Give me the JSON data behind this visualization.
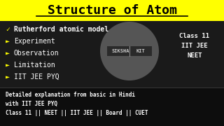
{
  "title": "Structure of Atom",
  "title_bg": "#ffff00",
  "main_bg": "#1a1a1a",
  "bullet_items": [
    [
      "✓",
      "Rutherford atomic model"
    ],
    [
      "►",
      "Experiment"
    ],
    [
      "►",
      "Observation"
    ],
    [
      "►",
      "Limitation"
    ],
    [
      "►",
      "IIT JEE PYQ"
    ]
  ],
  "side_text": [
    "Class 11",
    "IIT JEE",
    "NEET"
  ],
  "logo_text1": "SIKSHA",
  "logo_text2": "KIT",
  "bottom_lines": [
    "Detailed explanation from basic in Hindi",
    "with IIT JEE PYQ",
    "Class 11 || NEET || IIT JEE || Board || CUET"
  ],
  "bullet_color": "#ffff00",
  "text_color": "#ffffff",
  "circle_color": "#555555",
  "logo_bg": "#2a2a2a"
}
